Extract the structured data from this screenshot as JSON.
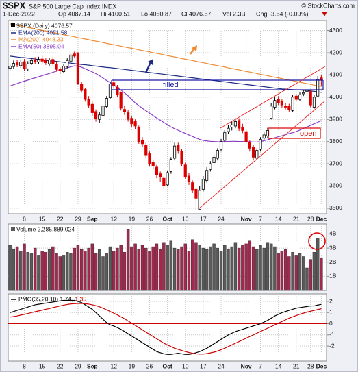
{
  "header": {
    "symbol": "$SPX",
    "name": "S&P 500 Large Cap Index INDX",
    "credit": "© StockCharts.com",
    "quote": [
      "1-Dec-2022",
      "Op 4087.14",
      "Hi 4100.51",
      "Lo 4050.87",
      "Cl 4076.57",
      "Vol 2.3B",
      "Chg -3.54 (-0.09%)"
    ]
  },
  "chart_data": [
    {
      "type": "candlestick",
      "name": "$SPX (Daily) 4076.57",
      "up_color": "#000000",
      "down_color": "#dd0000",
      "legend": "top-left",
      "grid": true,
      "annotations": [
        "filled",
        "open"
      ],
      "categories": [
        null,
        null,
        null,
        null,
        "8",
        null,
        null,
        null,
        null,
        "15",
        null,
        null,
        null,
        null,
        "22",
        null,
        null,
        null,
        null,
        "29",
        null,
        null,
        null,
        "Sep",
        null,
        null,
        null,
        null,
        null,
        "12",
        null,
        null,
        null,
        null,
        "19",
        null,
        null,
        null,
        null,
        "26",
        null,
        null,
        null,
        null,
        "Oct",
        null,
        null,
        null,
        null,
        "10",
        null,
        null,
        null,
        null,
        "17",
        null,
        null,
        null,
        null,
        "24",
        null,
        null,
        null,
        null,
        null,
        null,
        "Nov",
        null,
        null,
        null,
        "7",
        null,
        null,
        null,
        null,
        "14",
        null,
        null,
        null,
        null,
        "21",
        null,
        null,
        null,
        "28",
        null,
        null,
        "Dec"
      ],
      "open": [
        4130,
        4138,
        4155,
        4142,
        4160,
        4128,
        4152,
        4168,
        4158,
        4172,
        4165,
        4150,
        4170,
        4148,
        4126,
        4115,
        4138,
        4162,
        4195,
        4198,
        4058,
        4035,
        3992,
        3968,
        3935,
        3900,
        3918,
        3958,
        3998,
        4065,
        4045,
        4020,
        3945,
        3930,
        3905,
        3890,
        3865,
        3805,
        3785,
        3745,
        3705,
        3685,
        3655,
        3635,
        3605,
        3665,
        3725,
        3785,
        3755,
        3695,
        3645,
        3615,
        3585,
        3495,
        3585,
        3625,
        3675,
        3705,
        3725,
        3765,
        3805,
        3845,
        3865,
        3870,
        3895,
        3865,
        3845,
        3795,
        3775,
        3725,
        3765,
        3815,
        3825,
        3905,
        3955,
        3990,
        3980,
        3960,
        3960,
        3940,
        4005,
        3990,
        4015,
        4025,
        4025,
        3955,
        4005,
        4087.14
      ],
      "high": [
        4152,
        4165,
        4168,
        4170,
        4172,
        4162,
        4178,
        4180,
        4182,
        4185,
        4175,
        4178,
        4182,
        4158,
        4135,
        4150,
        4175,
        4200,
        4205,
        4203,
        4068,
        4042,
        4005,
        3980,
        3945,
        3932,
        3970,
        4005,
        4070,
        4080,
        4055,
        4025,
        3960,
        3942,
        3915,
        3900,
        3872,
        3820,
        3795,
        3755,
        3720,
        3695,
        3665,
        3645,
        3670,
        3730,
        3795,
        3795,
        3765,
        3705,
        3660,
        3625,
        3590,
        3600,
        3645,
        3685,
        3712,
        3745,
        3770,
        3812,
        3852,
        3875,
        3890,
        3905,
        3905,
        3880,
        3855,
        3805,
        3785,
        3770,
        3820,
        3842,
        3862,
        3972,
        4000,
        4005,
        3990,
        3975,
        3970,
        4010,
        4015,
        4022,
        4032,
        4042,
        4030,
        4010,
        4095,
        4100.51
      ],
      "low": [
        4120,
        4128,
        4135,
        4132,
        4120,
        4118,
        4145,
        4150,
        4150,
        4152,
        4145,
        4142,
        4140,
        4115,
        4105,
        4108,
        4130,
        4155,
        4175,
        4055,
        4020,
        3980,
        3950,
        3915,
        3890,
        3885,
        3910,
        3950,
        3990,
        4040,
        4000,
        3940,
        3920,
        3890,
        3865,
        3855,
        3790,
        3775,
        3725,
        3690,
        3675,
        3635,
        3620,
        3585,
        3598,
        3655,
        3715,
        3745,
        3690,
        3630,
        3605,
        3570,
        3491,
        3495,
        3575,
        3615,
        3665,
        3695,
        3715,
        3755,
        3795,
        3835,
        3850,
        3860,
        3848,
        3838,
        3790,
        3755,
        3715,
        3718,
        3755,
        3805,
        3815,
        3900,
        3945,
        3965,
        3950,
        3945,
        3935,
        3932,
        3980,
        3982,
        4005,
        4015,
        3955,
        3948,
        4000,
        4050.87
      ],
      "close": [
        4140,
        4152,
        4145,
        4158,
        4130,
        4150,
        4165,
        4160,
        4170,
        4162,
        4155,
        4168,
        4150,
        4125,
        4118,
        4140,
        4165,
        4190,
        4185,
        4060,
        4030,
        3990,
        3965,
        3930,
        3905,
        3920,
        3960,
        3995,
        4060,
        4050,
        4010,
        3950,
        3935,
        3900,
        3880,
        3870,
        3800,
        3790,
        3740,
        3700,
        3690,
        3650,
        3640,
        3600,
        3660,
        3720,
        3780,
        3760,
        3700,
        3640,
        3620,
        3580,
        3545,
        3580,
        3630,
        3670,
        3700,
        3730,
        3760,
        3800,
        3840,
        3860,
        3875,
        3890,
        3860,
        3850,
        3800,
        3770,
        3730,
        3760,
        3810,
        3830,
        3850,
        3960,
        3985,
        3975,
        3965,
        3955,
        3945,
        4000,
        3990,
        4010,
        4020,
        4030,
        3965,
        4000,
        4080,
        4076.57
      ],
      "series": [
        {
          "name": "EMA(200) 4021.58",
          "color": "#1c2a80",
          "values": [
            4185,
            4183,
            4181,
            4179,
            4178,
            4176,
            4174,
            4172,
            4170,
            4168,
            4166,
            4164,
            4163,
            4161,
            4159,
            4157,
            4155,
            4153,
            4151,
            4149,
            4147,
            4146,
            4144,
            4142,
            4140,
            4138,
            4136,
            4134,
            4133,
            4131,
            4129,
            4127,
            4125,
            4123,
            4121,
            4119,
            4117,
            4115,
            4113,
            4111,
            4109,
            4107,
            4105,
            4103,
            4101,
            4099,
            4097,
            4095,
            4093,
            4091,
            4089,
            4087,
            4085,
            4083,
            4081,
            4079,
            4077,
            4075,
            4073,
            4071,
            4069,
            4067,
            4065,
            4063,
            4061,
            4059,
            4057,
            4055,
            4053,
            4051,
            4049,
            4047,
            4045,
            4043,
            4041,
            4039,
            4037,
            4036,
            4035,
            4034,
            4033,
            4032,
            4031,
            4030,
            4028,
            4026,
            4024,
            4021.58
          ]
        },
        {
          "name": "MA(200) 4048.33",
          "color": "#f08a30",
          "values": [
            4330,
            4327,
            4324,
            4320,
            4317,
            4314,
            4311,
            4307,
            4304,
            4301,
            4298,
            4294,
            4291,
            4288,
            4285,
            4281,
            4278,
            4275,
            4272,
            4268,
            4265,
            4262,
            4259,
            4255,
            4252,
            4249,
            4246,
            4242,
            4239,
            4236,
            4233,
            4230,
            4226,
            4223,
            4220,
            4217,
            4213,
            4210,
            4207,
            4204,
            4200,
            4197,
            4194,
            4191,
            4187,
            4184,
            4181,
            4178,
            4174,
            4171,
            4168,
            4165,
            4161,
            4158,
            4155,
            4152,
            4148,
            4145,
            4142,
            4139,
            4136,
            4132,
            4129,
            4126,
            4123,
            4119,
            4116,
            4113,
            4110,
            4106,
            4103,
            4100,
            4097,
            4093,
            4090,
            4087,
            4084,
            4080,
            4077,
            4074,
            4071,
            4067,
            4064,
            4061,
            4058,
            4054,
            4051,
            4048.33
          ]
        },
        {
          "name": "EMA(50) 3895.04",
          "color": "#8a3cc8",
          "values": [
            4050,
            4056,
            4061,
            4067,
            4072,
            4077,
            4082,
            4087,
            4092,
            4097,
            4102,
            4107,
            4112,
            4117,
            4122,
            4127,
            4132,
            4137,
            4141,
            4140,
            4135,
            4128,
            4121,
            4114,
            4106,
            4097,
            4086,
            4075,
            4066,
            4055,
            4044,
            4032,
            4019,
            4006,
            3990,
            3974,
            3962,
            3950,
            3939,
            3928,
            3917,
            3906,
            3896,
            3886,
            3876,
            3866,
            3858,
            3851,
            3844,
            3837,
            3830,
            3823,
            3816,
            3810,
            3805,
            3803,
            3801,
            3800,
            3799,
            3799,
            3800,
            3800,
            3801,
            3801,
            3800,
            3800,
            3799,
            3799,
            3798,
            3798,
            3800,
            3804,
            3808,
            3813,
            3817,
            3822,
            3826,
            3831,
            3836,
            3840,
            3845,
            3852,
            3859,
            3866,
            3873,
            3880,
            3887,
            3895.04
          ]
        }
      ],
      "ylim": [
        3475,
        4345
      ],
      "yticks": [
        3500,
        3600,
        3700,
        3800,
        3900,
        4000,
        4100,
        4200,
        4300
      ]
    },
    {
      "type": "bar",
      "name": "Volume 2,285,889,024",
      "up_color": "#5a5a5a",
      "down_color": "#a3284f",
      "values": [
        3.2,
        2.9,
        3.1,
        2.8,
        3.3,
        2.7,
        2.6,
        3.0,
        2.5,
        2.8,
        2.7,
        2.9,
        3.1,
        2.6,
        2.4,
        2.5,
        2.7,
        2.6,
        3.0,
        3.2,
        2.9,
        2.8,
        3.0,
        3.3,
        2.6,
        2.9,
        2.4,
        2.6,
        3.1,
        2.8,
        3.0,
        3.2,
        2.7,
        4.35,
        3.1,
        3.3,
        2.9,
        3.2,
        3.0,
        2.8,
        3.1,
        3.3,
        2.9,
        3.4,
        3.2,
        3.5,
        3.0,
        2.9,
        3.1,
        3.3,
        2.8,
        3.6,
        3.4,
        3.2,
        3.0,
        2.9,
        3.1,
        3.3,
        3.0,
        2.8,
        3.2,
        2.9,
        3.1,
        3.4,
        3.0,
        3.2,
        3.3,
        3.5,
        3.1,
        2.9,
        3.2,
        3.0,
        3.4,
        3.3,
        3.1,
        2.6,
        2.8,
        2.9,
        2.4,
        2.7,
        2.5,
        2.6,
        2.4,
        1.6,
        2.2,
        2.7,
        3.7,
        2.29
      ],
      "ylim": [
        0,
        4.7
      ],
      "yticks": [
        {
          "value": 1,
          "label": "1B"
        },
        {
          "value": 2,
          "label": "2B"
        },
        {
          "value": 3,
          "label": "3B"
        },
        {
          "value": 4,
          "label": "4B"
        }
      ],
      "grid": true
    },
    {
      "type": "line",
      "zero_line_color": "#cc0000",
      "grid": true,
      "categories": [
        null,
        null,
        null,
        null,
        "8",
        null,
        null,
        null,
        null,
        "15",
        null,
        null,
        null,
        null,
        "22",
        null,
        null,
        null,
        null,
        "29",
        null,
        null,
        null,
        "Sep",
        null,
        null,
        null,
        null,
        null,
        "12",
        null,
        null,
        null,
        null,
        "19",
        null,
        null,
        null,
        null,
        "26",
        null,
        null,
        null,
        null,
        "Oct",
        null,
        null,
        null,
        null,
        "10",
        null,
        null,
        null,
        null,
        "17",
        null,
        null,
        null,
        null,
        "24",
        null,
        null,
        null,
        null,
        null,
        null,
        "Nov",
        null,
        null,
        null,
        "7",
        null,
        null,
        null,
        null,
        "14",
        null,
        null,
        null,
        null,
        "21",
        null,
        null,
        null,
        "28",
        null,
        null,
        "Dec"
      ],
      "series": [
        {
          "name": "PMO(35,20,10) 1.74,",
          "color": "#000000",
          "values": [
            1.0,
            1.1,
            1.2,
            1.3,
            1.4,
            1.5,
            1.6,
            1.7,
            1.75,
            1.8,
            1.85,
            1.9,
            1.95,
            2.0,
            2.05,
            2.1,
            2.1,
            2.1,
            2.1,
            2.0,
            1.9,
            1.7,
            1.5,
            1.3,
            1.0,
            0.7,
            0.4,
            0.1,
            -0.1,
            -0.2,
            -0.35,
            -0.5,
            -0.7,
            -0.9,
            -1.1,
            -1.3,
            -1.5,
            -1.7,
            -1.9,
            -2.1,
            -2.3,
            -2.5,
            -2.6,
            -2.7,
            -2.75,
            -2.75,
            -2.7,
            -2.65,
            -2.7,
            -2.75,
            -2.75,
            -2.7,
            -2.6,
            -2.5,
            -2.35,
            -2.2,
            -2.0,
            -1.8,
            -1.6,
            -1.4,
            -1.2,
            -1.0,
            -0.85,
            -0.7,
            -0.6,
            -0.5,
            -0.4,
            -0.3,
            -0.2,
            -0.1,
            0.0,
            0.15,
            0.3,
            0.5,
            0.7,
            0.85,
            1.0,
            1.1,
            1.2,
            1.3,
            1.4,
            1.45,
            1.5,
            1.55,
            1.6,
            1.6,
            1.68,
            1.74
          ]
        },
        {
          "name": "1.35",
          "color": "#cc0000",
          "values": [
            0.6,
            0.65,
            0.7,
            0.78,
            0.85,
            0.92,
            1.0,
            1.08,
            1.15,
            1.22,
            1.3,
            1.37,
            1.45,
            1.52,
            1.6,
            1.67,
            1.73,
            1.78,
            1.8,
            1.82,
            1.82,
            1.8,
            1.76,
            1.7,
            1.62,
            1.52,
            1.4,
            1.25,
            1.1,
            0.95,
            0.8,
            0.62,
            0.45,
            0.25,
            0.05,
            -0.15,
            -0.35,
            -0.55,
            -0.75,
            -0.95,
            -1.15,
            -1.35,
            -1.55,
            -1.75,
            -1.9,
            -2.05,
            -2.2,
            -2.3,
            -2.4,
            -2.5,
            -2.58,
            -2.65,
            -2.7,
            -2.72,
            -2.72,
            -2.68,
            -2.62,
            -2.55,
            -2.45,
            -2.33,
            -2.2,
            -2.05,
            -1.9,
            -1.75,
            -1.6,
            -1.45,
            -1.3,
            -1.15,
            -1.0,
            -0.85,
            -0.7,
            -0.55,
            -0.4,
            -0.25,
            -0.1,
            0.05,
            0.2,
            0.35,
            0.5,
            0.62,
            0.74,
            0.85,
            0.95,
            1.05,
            1.12,
            1.2,
            1.28,
            1.35
          ]
        }
      ],
      "ylim": [
        -3.35,
        2.68
      ],
      "yticks": [
        -2,
        -1,
        0,
        1,
        2
      ]
    }
  ]
}
